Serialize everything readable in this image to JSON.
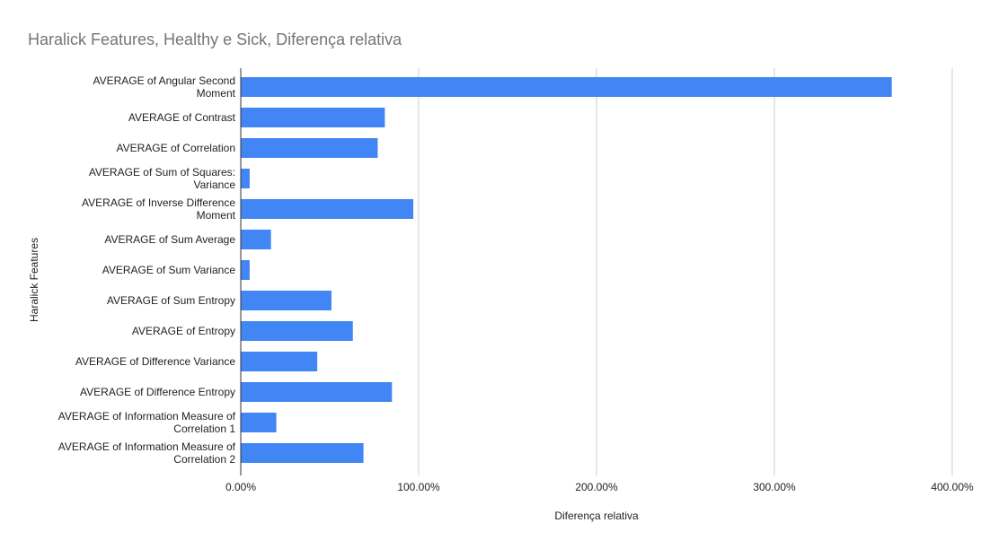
{
  "chart_data": {
    "type": "bar",
    "orientation": "horizontal",
    "title": "Haralick Features, Healthy e Sick, Diferença relativa",
    "xlabel": "Diferença relativa",
    "ylabel": "Haralick Features",
    "categories": [
      [
        "AVERAGE of Angular Second",
        "Moment"
      ],
      [
        "AVERAGE of Contrast"
      ],
      [
        "AVERAGE of Correlation"
      ],
      [
        "AVERAGE of Sum of Squares:",
        "Variance"
      ],
      [
        "AVERAGE of Inverse Difference",
        "Moment"
      ],
      [
        "AVERAGE of Sum Average"
      ],
      [
        "AVERAGE of Sum Variance"
      ],
      [
        "AVERAGE of Sum Entropy"
      ],
      [
        "AVERAGE of Entropy"
      ],
      [
        "AVERAGE of Difference Variance"
      ],
      [
        "AVERAGE of Difference Entropy"
      ],
      [
        "AVERAGE of Information Measure of",
        "Correlation 1"
      ],
      [
        "AVERAGE of Information Measure of",
        "Correlation 2"
      ]
    ],
    "values": [
      366,
      81,
      77,
      5,
      97,
      17,
      5,
      51,
      63,
      43,
      85,
      20,
      69
    ],
    "xlim": [
      0,
      400
    ],
    "xticks": [
      "0.00%",
      "100.00%",
      "200.00%",
      "300.00%",
      "400.00%"
    ],
    "grid": true,
    "legend": "none",
    "bar_color": "#4285f4"
  }
}
